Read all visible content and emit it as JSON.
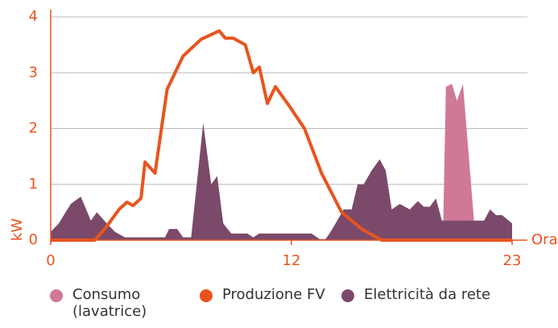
{
  "chart_data": {
    "type": "line_area",
    "x_label": "Ora",
    "y_label": "kW",
    "xlim": [
      0,
      23
    ],
    "xticks": [
      0,
      12,
      23
    ],
    "ylim": [
      0,
      4
    ],
    "yticks": [
      0,
      1,
      2,
      3,
      4
    ],
    "grid": true,
    "series": [
      {
        "name": "Consumo (lavatrice)",
        "color": "#d07898",
        "kind": "area",
        "x": [
          19.55,
          19.7,
          20.0,
          20.25,
          20.55,
          21.1,
          21.2
        ],
        "values": [
          0,
          2.75,
          2.8,
          2.5,
          2.8,
          0.35,
          0
        ]
      },
      {
        "name": "Produzione FV",
        "color": "#e8541e",
        "kind": "line",
        "x": [
          0,
          2.2,
          2.8,
          3.4,
          3.8,
          4.1,
          4.5,
          4.7,
          5.2,
          5.8,
          6.6,
          7.5,
          8.4,
          8.7,
          9.1,
          9.7,
          10.1,
          10.4,
          10.8,
          11.2,
          11.9,
          12.65,
          13.5,
          14.5,
          15.5,
          16.5,
          23
        ],
        "values": [
          0,
          0,
          0.25,
          0.55,
          0.68,
          0.62,
          0.75,
          1.4,
          1.2,
          2.7,
          3.3,
          3.6,
          3.75,
          3.62,
          3.62,
          3.5,
          3.0,
          3.1,
          2.45,
          2.75,
          2.4,
          2.0,
          1.2,
          0.5,
          0.2,
          0,
          0
        ]
      },
      {
        "name": "Elettricità da rete",
        "color": "#7b4a6b",
        "kind": "area",
        "x": [
          0,
          0.4,
          1.0,
          1.5,
          2.0,
          2.3,
          2.8,
          3.2,
          3.7,
          5.7,
          5.9,
          6.3,
          6.6,
          7.0,
          7.6,
          8.0,
          8.3,
          8.6,
          9.0,
          9.8,
          10.1,
          10.4,
          13.0,
          13.4,
          13.7,
          13.9,
          14.2,
          14.6,
          15.0,
          15.3,
          15.6,
          16.0,
          16.4,
          16.7,
          17.0,
          17.4,
          17.9,
          18.3,
          18.6,
          18.9,
          19.2,
          19.5,
          21.6,
          21.9,
          22.2,
          22.5,
          23
        ],
        "values": [
          0.15,
          0.3,
          0.65,
          0.78,
          0.35,
          0.5,
          0.3,
          0.15,
          0.05,
          0.05,
          0.2,
          0.2,
          0.05,
          0.05,
          2.1,
          1.0,
          1.15,
          0.3,
          0.12,
          0.12,
          0.05,
          0.12,
          0.12,
          0.02,
          0.02,
          0.12,
          0.3,
          0.55,
          0.55,
          1.0,
          1.0,
          1.25,
          1.45,
          1.25,
          0.55,
          0.65,
          0.55,
          0.7,
          0.6,
          0.6,
          0.75,
          0.35,
          0.35,
          0.55,
          0.45,
          0.45,
          0.3
        ]
      }
    ]
  }
}
